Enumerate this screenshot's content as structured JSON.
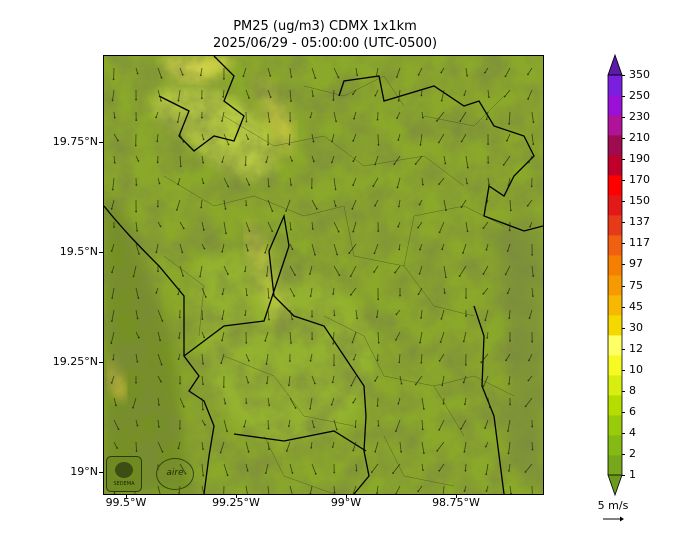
{
  "title": {
    "line1": "PM25 (ug/m3) CDMX 1x1km",
    "line2": "2025/06/29 - 05:00:00 (UTC-0500)"
  },
  "axes": {
    "y_ticks": [
      "19.75°N",
      "19.5°N",
      "19.25°N",
      "19°N"
    ],
    "x_ticks": [
      "99.5°W",
      "99.25°W",
      "99°W",
      "98.75°W"
    ]
  },
  "colorbar": {
    "levels": [
      "1",
      "2",
      "4",
      "6",
      "8",
      "10",
      "12",
      "30",
      "45",
      "75",
      "97",
      "117",
      "137",
      "150",
      "170",
      "190",
      "210",
      "230",
      "250",
      "350"
    ],
    "colors": [
      "#6b9a1e",
      "#77a81c",
      "#84ba14",
      "#98cc0a",
      "#b5dd00",
      "#d8ee10",
      "#f7f923",
      "#ffff66",
      "#f5d800",
      "#f6b800",
      "#f59a00",
      "#f47f00",
      "#f06010",
      "#e63a1a",
      "#e31818",
      "#ff0000",
      "#c0002a",
      "#9e0b4f",
      "#b0139a",
      "#9a10d8",
      "#7a1ee0",
      "#5b1ba8"
    ]
  },
  "wind_reference": {
    "label": "5 m/s"
  },
  "map": {
    "base_color": "#8aa82a"
  },
  "logos": {
    "left": "SEDEMA",
    "right": "aire"
  }
}
